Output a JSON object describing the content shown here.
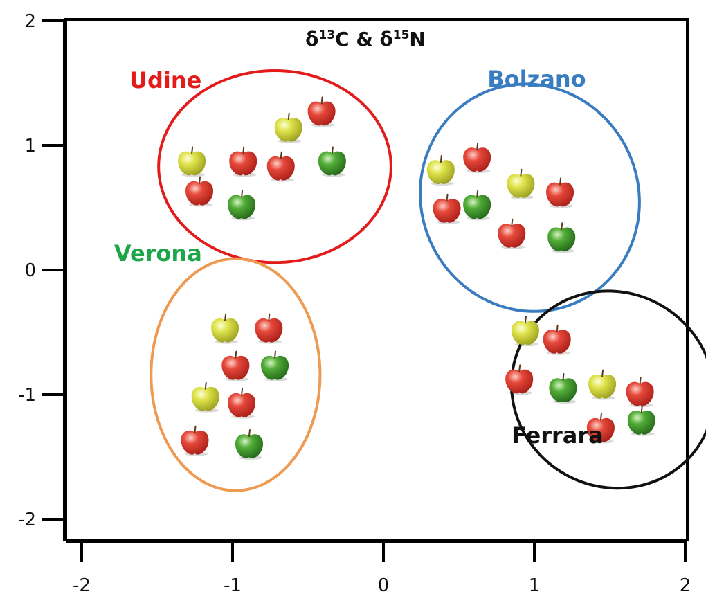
{
  "chart_data": {
    "type": "scatter",
    "title_parts": [
      {
        "text": "δ",
        "sup": false
      },
      {
        "text": "13",
        "sup": true
      },
      {
        "text": "C & δ",
        "sup": false
      },
      {
        "text": "15",
        "sup": true
      },
      {
        "text": "N",
        "sup": false
      }
    ],
    "xlim": [
      -2,
      2
    ],
    "ylim": [
      -2,
      2
    ],
    "xticks": [
      -2,
      -1,
      0,
      1,
      2
    ],
    "yticks": [
      -2,
      -1,
      0,
      1,
      2
    ],
    "x_tick_labels": [
      "-2",
      "-1",
      "0",
      "1",
      "2"
    ],
    "y_tick_labels": [
      "-2",
      "-1",
      "0",
      "1",
      "2"
    ],
    "grid": false,
    "marker": "apple",
    "apple_colors": {
      "red": "#d93428",
      "green": "#3f9a2c",
      "yellow": "#d2d63a"
    },
    "groups": [
      {
        "name": "Udine",
        "color": "#e31b1b",
        "ellipse": {
          "cx": -0.72,
          "cy": 0.83,
          "rx": 0.77,
          "ry": 0.77
        },
        "points": [
          {
            "x": -1.27,
            "y": 0.87,
            "apple": "yellow"
          },
          {
            "x": -1.22,
            "y": 0.63,
            "apple": "red"
          },
          {
            "x": -0.93,
            "y": 0.87,
            "apple": "red"
          },
          {
            "x": -0.94,
            "y": 0.52,
            "apple": "green"
          },
          {
            "x": -0.68,
            "y": 0.83,
            "apple": "red"
          },
          {
            "x": -0.63,
            "y": 1.14,
            "apple": "yellow"
          },
          {
            "x": -0.41,
            "y": 1.27,
            "apple": "red"
          },
          {
            "x": -0.34,
            "y": 0.87,
            "apple": "green"
          }
        ]
      },
      {
        "name": "Bolzano",
        "color": "#3a7cc0",
        "ellipse": {
          "cx": 0.97,
          "cy": 0.58,
          "rx": 0.72,
          "ry": 0.92
        },
        "points": [
          {
            "x": 0.38,
            "y": 0.8,
            "apple": "yellow"
          },
          {
            "x": 0.42,
            "y": 0.49,
            "apple": "red"
          },
          {
            "x": 0.62,
            "y": 0.9,
            "apple": "red"
          },
          {
            "x": 0.62,
            "y": 0.52,
            "apple": "green"
          },
          {
            "x": 0.91,
            "y": 0.69,
            "apple": "yellow"
          },
          {
            "x": 0.85,
            "y": 0.29,
            "apple": "red"
          },
          {
            "x": 1.17,
            "y": 0.62,
            "apple": "red"
          },
          {
            "x": 1.18,
            "y": 0.26,
            "apple": "green"
          }
        ]
      },
      {
        "name": "Verona",
        "color": "#1ea54a",
        "ellipse": {
          "cx": -0.98,
          "cy": -0.84,
          "rx": 0.56,
          "ry": 0.93
        },
        "points": [
          {
            "x": -1.05,
            "y": -0.47,
            "apple": "yellow"
          },
          {
            "x": -0.76,
            "y": -0.47,
            "apple": "red"
          },
          {
            "x": -0.98,
            "y": -0.77,
            "apple": "red"
          },
          {
            "x": -0.72,
            "y": -0.77,
            "apple": "green"
          },
          {
            "x": -1.18,
            "y": -1.02,
            "apple": "yellow"
          },
          {
            "x": -0.94,
            "y": -1.07,
            "apple": "red"
          },
          {
            "x": -1.25,
            "y": -1.37,
            "apple": "red"
          },
          {
            "x": -0.89,
            "y": -1.4,
            "apple": "green"
          }
        ]
      },
      {
        "name": "Ferrara",
        "color": "#111111",
        "ellipse": {
          "cx": 1.52,
          "cy": -0.96,
          "rx": 0.68,
          "ry": 0.78
        },
        "points": [
          {
            "x": 0.94,
            "y": -0.49,
            "apple": "yellow"
          },
          {
            "x": 1.15,
            "y": -0.56,
            "apple": "red"
          },
          {
            "x": 0.9,
            "y": -0.88,
            "apple": "red"
          },
          {
            "x": 1.19,
            "y": -0.95,
            "apple": "green"
          },
          {
            "x": 1.45,
            "y": -0.92,
            "apple": "yellow"
          },
          {
            "x": 1.7,
            "y": -0.98,
            "apple": "red"
          },
          {
            "x": 1.44,
            "y": -1.27,
            "apple": "red"
          },
          {
            "x": 1.71,
            "y": -1.21,
            "apple": "green"
          }
        ]
      }
    ]
  }
}
